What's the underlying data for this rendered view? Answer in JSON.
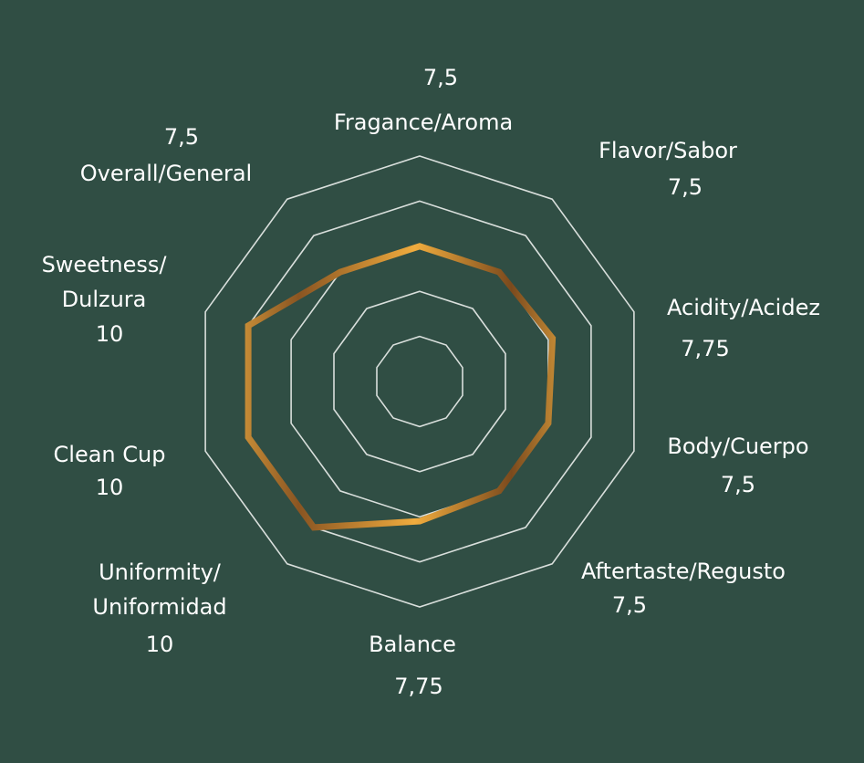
{
  "chart_data": {
    "type": "radar",
    "r_range": [
      0,
      12.5
    ],
    "ring_values": [
      2.5,
      5,
      7.5,
      10,
      12.5
    ],
    "grid": true,
    "colors": {
      "background": "#304e44",
      "grid": "#d9dfdc",
      "series_light": "#f4b545",
      "series_dark": "#7b4a1d"
    },
    "axes": [
      {
        "label": [
          "Fragance/Aroma"
        ],
        "value_text": "7,5",
        "value": 7.5
      },
      {
        "label": [
          "Flavor/Sabor"
        ],
        "value_text": "7,5",
        "value": 7.5
      },
      {
        "label": [
          "Acidity/Acidez"
        ],
        "value_text": "7,75",
        "value": 7.75
      },
      {
        "label": [
          "Body/Cuerpo"
        ],
        "value_text": "7,5",
        "value": 7.5
      },
      {
        "label": [
          "Aftertaste/Regusto"
        ],
        "value_text": "7,5",
        "value": 7.5
      },
      {
        "label": [
          "Balance"
        ],
        "value_text": "7,75",
        "value": 7.75
      },
      {
        "label": [
          "Uniformity/",
          "Uniformidad"
        ],
        "value_text": "10",
        "value": 10
      },
      {
        "label": [
          "Clean Cup"
        ],
        "value_text": "10",
        "value": 10
      },
      {
        "label": [
          "Sweetness/",
          "Dulzura"
        ],
        "value_text": "10",
        "value": 10
      },
      {
        "label": [
          "Overall/General"
        ],
        "value_text": "7,5",
        "value": 7.5
      }
    ]
  }
}
